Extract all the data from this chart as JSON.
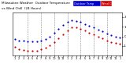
{
  "title": "Milwaukee Weather  Outdoor Temperature",
  "title2": "vs Wind Chill  (24 Hours)",
  "legend_temp_label": "Outdoor Temp",
  "legend_wind_label": "Wind Chill",
  "legend_temp_color": "#0000cc",
  "legend_wind_color": "#cc0000",
  "background_color": "#ffffff",
  "plot_bg_color": "#ffffff",
  "grid_color": "#888888",
  "x_labels": [
    "1",
    "2",
    "3",
    "4",
    "5",
    "6",
    "7",
    "8",
    "9",
    "10",
    "11",
    "12",
    "1",
    "2",
    "3",
    "4",
    "5",
    "6",
    "7",
    "8",
    "9",
    "10",
    "11",
    "12",
    "1"
  ],
  "outdoor_temp_x": [
    0,
    1,
    2,
    3,
    4,
    5,
    6,
    7,
    8,
    9,
    10,
    11,
    12,
    13,
    14,
    15,
    16,
    17,
    18,
    19,
    20,
    21,
    22,
    23,
    24
  ],
  "outdoor_temp_y": [
    -3,
    -4,
    -4,
    -5,
    -5,
    -5,
    -4,
    -3,
    0,
    4,
    8,
    12,
    15,
    17,
    16,
    15,
    13,
    11,
    9,
    7,
    5,
    3,
    1,
    0,
    -1
  ],
  "wind_chill_x": [
    0,
    1,
    2,
    3,
    4,
    5,
    6,
    7,
    8,
    9,
    10,
    11,
    12,
    13,
    14,
    15,
    16,
    17,
    18,
    19,
    20,
    21,
    22,
    23,
    24
  ],
  "wind_chill_y": [
    -11,
    -13,
    -14,
    -15,
    -15,
    -15,
    -13,
    -12,
    -9,
    -6,
    -2,
    2,
    6,
    9,
    9,
    8,
    6,
    4,
    2,
    0,
    -2,
    -4,
    -6,
    -7,
    -8
  ],
  "ylim": [
    -20,
    25
  ],
  "xlim": [
    -0.5,
    24.5
  ],
  "ytick_values": [
    -10,
    0,
    10,
    20
  ],
  "ytick_labels": [
    "-10",
    "0",
    "10",
    "20"
  ],
  "marker_size": 2.5,
  "temp_color": "#0000cc",
  "chill_color": "#cc0000",
  "vgrid_positions": [
    3,
    6,
    9,
    12,
    15,
    18,
    21
  ]
}
